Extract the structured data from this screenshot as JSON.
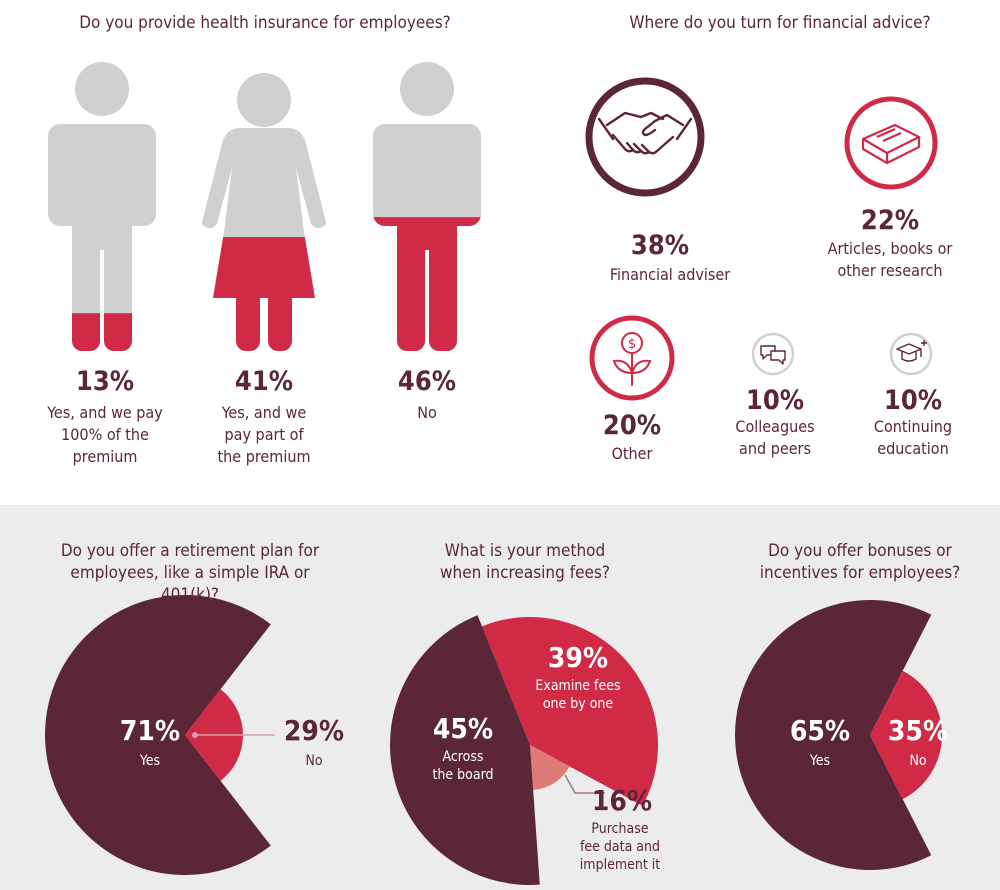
{
  "colors": {
    "dark": "#5b2637",
    "red": "#d12a46",
    "light_red": "#e07a76",
    "gray": "#d0d0d0",
    "band": "#ececec"
  },
  "health": {
    "title": "Do you provide health insurance for employees?",
    "items": [
      {
        "pct": "13%",
        "value": 13,
        "label_lines": [
          "Yes, and we pay",
          "100% of the",
          "premium"
        ]
      },
      {
        "pct": "41%",
        "value": 41,
        "label_lines": [
          "Yes, and we",
          "pay part of",
          "the premium"
        ]
      },
      {
        "pct": "46%",
        "value": 46,
        "label_lines": [
          "No"
        ]
      }
    ]
  },
  "advice": {
    "title": "Where do you turn for financial advice?",
    "items": [
      {
        "pct": "38%",
        "value": 38,
        "label_lines": [
          "Financial adviser"
        ],
        "icon": "handshake-icon"
      },
      {
        "pct": "22%",
        "value": 22,
        "label_lines": [
          "Articles, books or",
          "other research"
        ],
        "icon": "book-icon"
      },
      {
        "pct": "20%",
        "value": 20,
        "label_lines": [
          "Other"
        ],
        "icon": "money-plant-icon"
      },
      {
        "pct": "10%",
        "value": 10,
        "label_lines": [
          "Colleagues",
          "and peers"
        ],
        "icon": "chat-bubbles-icon"
      },
      {
        "pct": "10%",
        "value": 10,
        "label_lines": [
          "Continuing",
          "education"
        ],
        "icon": "graduation-cap-icon"
      }
    ]
  },
  "chart_data": [
    {
      "type": "pie",
      "title": "Do you offer a retirement plan for employees, like a simple IRA or 401(k)?",
      "title_lines": [
        "Do you offer a retirement plan for",
        "employees, like a simple IRA or 401(k)?"
      ],
      "slices": [
        {
          "pct": "71%",
          "value": 71,
          "label": "Yes"
        },
        {
          "pct": "29%",
          "value": 29,
          "label": "No"
        }
      ]
    },
    {
      "type": "pie",
      "title": "What is your method when increasing fees?",
      "title_lines": [
        "What is your method",
        "when increasing fees?"
      ],
      "slices": [
        {
          "pct": "45%",
          "value": 45,
          "label_lines": [
            "Across",
            "the board"
          ]
        },
        {
          "pct": "39%",
          "value": 39,
          "label_lines": [
            "Examine fees",
            "one by one"
          ]
        },
        {
          "pct": "16%",
          "value": 16,
          "label_lines": [
            "Purchase",
            "fee data and",
            "implement it"
          ]
        }
      ]
    },
    {
      "type": "pie",
      "title": "Do you offer bonuses or incentives for employees?",
      "title_lines": [
        "Do you offer bonuses or",
        "incentives for employees?"
      ],
      "slices": [
        {
          "pct": "65%",
          "value": 65,
          "label": "Yes"
        },
        {
          "pct": "35%",
          "value": 35,
          "label": "No"
        }
      ]
    }
  ]
}
